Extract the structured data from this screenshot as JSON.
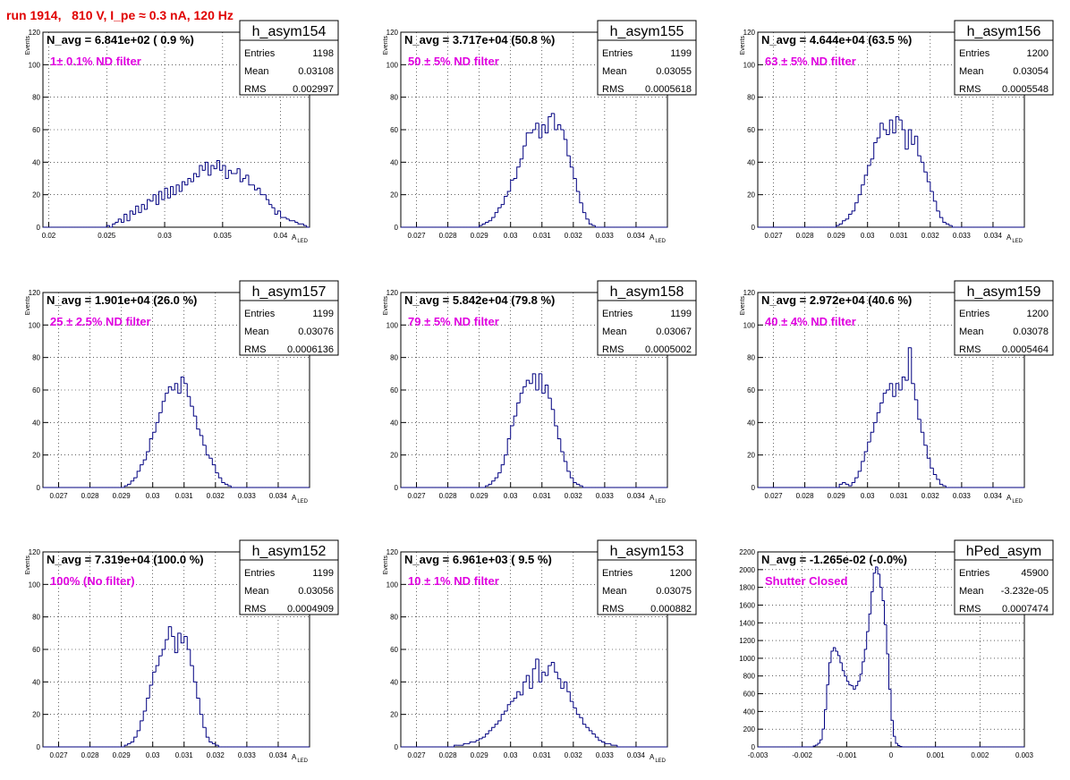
{
  "run_title": "run 1914,   810 V, I_pe ≈ 0.3 nA, 120 Hz",
  "colors": {
    "hist": "#000080",
    "label": "#e000e0",
    "title": "#e00000",
    "grid": "#000000"
  },
  "chart_data": [
    {
      "type": "histogram",
      "name": "h_asym154",
      "nav": "N_avg = 6.841e+02 ( 0.9 %)",
      "filter": "1± 0.1% ND filter",
      "stats": {
        "entries": "1198",
        "mean": "0.03108",
        "rms": "0.002997"
      },
      "ylabel": "Events",
      "xlabel": "A_LED",
      "xlim": [
        0.0195,
        0.0425
      ],
      "ylim": [
        0,
        120
      ],
      "xticks": [
        0.02,
        0.025,
        0.03,
        0.035,
        0.04
      ],
      "xtick_labels": [
        "0.02",
        "0.025",
        "0.03",
        "0.035",
        "0.04"
      ],
      "yticks": [
        0,
        20,
        40,
        60,
        80,
        100,
        120
      ],
      "ytick_labels": [
        "0",
        "20",
        "40",
        "60",
        "80",
        "100",
        "120"
      ],
      "bin_lo": 0.0195,
      "bin_w": 0.00025,
      "counts": [
        0,
        0,
        0,
        0,
        0,
        0,
        0,
        0,
        0,
        0,
        0,
        0,
        0,
        0,
        0,
        0,
        0,
        0,
        0,
        0,
        0,
        0,
        1,
        0,
        2,
        3,
        5,
        3,
        8,
        4,
        10,
        8,
        13,
        9,
        14,
        11,
        17,
        16,
        20,
        14,
        22,
        17,
        24,
        18,
        25,
        20,
        26,
        22,
        28,
        26,
        30,
        28,
        33,
        31,
        38,
        35,
        40,
        32,
        38,
        36,
        41,
        35,
        38,
        30,
        35,
        33,
        33,
        36,
        28,
        30,
        32,
        26,
        26,
        23,
        24,
        20,
        20,
        17,
        14,
        12,
        8,
        10,
        6,
        6,
        5,
        4,
        4,
        3,
        2,
        2,
        1,
        0,
        0,
        0
      ]
    },
    {
      "type": "histogram",
      "name": "h_asym155",
      "nav": "N_avg = 3.717e+04 (50.8 %)",
      "filter": "50 ± 5% ND filter",
      "stats": {
        "entries": "1199",
        "mean": "0.03055",
        "rms": "0.0005618"
      },
      "ylabel": "Events",
      "xlabel": "A_LED",
      "xlim": [
        0.0265,
        0.035
      ],
      "ylim": [
        0,
        120
      ],
      "xticks": [
        0.027,
        0.028,
        0.029,
        0.03,
        0.031,
        0.032,
        0.033,
        0.034
      ],
      "xtick_labels": [
        "0.027",
        "0.028",
        "0.029",
        "0.03",
        "0.031",
        "0.032",
        "0.033",
        "0.034"
      ],
      "yticks": [
        0,
        20,
        40,
        60,
        80,
        100,
        120
      ],
      "ytick_labels": [
        "0",
        "20",
        "40",
        "60",
        "80",
        "100",
        "120"
      ],
      "bin_lo": 0.0265,
      "bin_w": 0.0001,
      "counts": [
        0,
        0,
        0,
        0,
        0,
        0,
        0,
        0,
        0,
        0,
        0,
        0,
        0,
        0,
        0,
        0,
        0,
        0,
        0,
        0,
        0,
        0,
        0,
        0,
        0,
        1,
        2,
        3,
        4,
        6,
        9,
        12,
        14,
        19,
        22,
        29,
        30,
        37,
        42,
        50,
        58,
        58,
        60,
        64,
        55,
        63,
        58,
        68,
        70,
        60,
        63,
        60,
        54,
        44,
        37,
        30,
        22,
        15,
        9,
        5,
        2,
        1,
        0,
        0,
        0,
        0,
        0,
        0,
        0,
        0,
        0,
        0,
        0,
        0,
        0,
        0,
        0,
        0,
        0,
        0,
        0,
        0,
        0,
        0,
        0
      ]
    },
    {
      "type": "histogram",
      "name": "h_asym156",
      "nav": "N_avg = 4.644e+04 (63.5 %)",
      "filter": "63 ± 5% ND filter",
      "stats": {
        "entries": "1200",
        "mean": "0.03054",
        "rms": "0.0005548"
      },
      "ylabel": "Events",
      "xlabel": "A_LED",
      "xlim": [
        0.0265,
        0.035
      ],
      "ylim": [
        0,
        120
      ],
      "xticks": [
        0.027,
        0.028,
        0.029,
        0.03,
        0.031,
        0.032,
        0.033,
        0.034
      ],
      "xtick_labels": [
        "0.027",
        "0.028",
        "0.029",
        "0.03",
        "0.031",
        "0.032",
        "0.033",
        "0.034"
      ],
      "yticks": [
        0,
        20,
        40,
        60,
        80,
        100,
        120
      ],
      "ytick_labels": [
        "0",
        "20",
        "40",
        "60",
        "80",
        "100",
        "120"
      ],
      "bin_lo": 0.0265,
      "bin_w": 0.0001,
      "counts": [
        0,
        0,
        0,
        0,
        0,
        0,
        0,
        0,
        0,
        0,
        0,
        0,
        0,
        0,
        0,
        0,
        0,
        0,
        0,
        0,
        0,
        0,
        0,
        0,
        0,
        1,
        2,
        4,
        5,
        8,
        10,
        15,
        20,
        26,
        32,
        38,
        42,
        52,
        55,
        64,
        60,
        57,
        66,
        58,
        68,
        66,
        60,
        48,
        60,
        51,
        56,
        44,
        40,
        34,
        28,
        22,
        16,
        10,
        6,
        3,
        2,
        1,
        0,
        0,
        0,
        0,
        0,
        0,
        0,
        0,
        0,
        0,
        0,
        0,
        0,
        0,
        0,
        0,
        0,
        0,
        0,
        0,
        0,
        0,
        0
      ]
    },
    {
      "type": "histogram",
      "name": "h_asym157",
      "nav": "N_avg = 1.901e+04 (26.0 %)",
      "filter": "25 ± 2.5% ND filter",
      "stats": {
        "entries": "1199",
        "mean": "0.03076",
        "rms": "0.0006136"
      },
      "ylabel": "Events",
      "xlabel": "A_LED",
      "xlim": [
        0.0265,
        0.035
      ],
      "ylim": [
        0,
        120
      ],
      "xticks": [
        0.027,
        0.028,
        0.029,
        0.03,
        0.031,
        0.032,
        0.033,
        0.034
      ],
      "xtick_labels": [
        "0.027",
        "0.028",
        "0.029",
        "0.03",
        "0.031",
        "0.032",
        "0.033",
        "0.034"
      ],
      "yticks": [
        0,
        20,
        40,
        60,
        80,
        100,
        120
      ],
      "ytick_labels": [
        "0",
        "20",
        "40",
        "60",
        "80",
        "100",
        "120"
      ],
      "bin_lo": 0.0265,
      "bin_w": 0.0001,
      "counts": [
        0,
        0,
        0,
        0,
        0,
        0,
        0,
        0,
        0,
        0,
        0,
        0,
        0,
        0,
        0,
        0,
        0,
        0,
        0,
        0,
        0,
        0,
        0,
        0,
        0,
        0,
        1,
        2,
        4,
        6,
        10,
        14,
        17,
        22,
        30,
        34,
        40,
        46,
        53,
        58,
        62,
        60,
        64,
        58,
        68,
        64,
        56,
        50,
        44,
        36,
        32,
        26,
        20,
        18,
        14,
        9,
        6,
        3,
        2,
        1,
        0,
        0,
        0,
        0,
        0,
        0,
        0,
        0,
        0,
        0,
        0,
        0,
        0,
        0,
        0,
        0,
        0,
        0,
        0,
        0,
        0,
        0,
        0,
        0,
        0
      ]
    },
    {
      "type": "histogram",
      "name": "h_asym158",
      "nav": "N_avg = 5.842e+04 (79.8 %)",
      "filter": "79 ± 5% ND filter",
      "stats": {
        "entries": "1199",
        "mean": "0.03067",
        "rms": "0.0005002"
      },
      "ylabel": "Events",
      "xlabel": "A_LED",
      "xlim": [
        0.0265,
        0.035
      ],
      "ylim": [
        0,
        120
      ],
      "xticks": [
        0.027,
        0.028,
        0.029,
        0.03,
        0.031,
        0.032,
        0.033,
        0.034
      ],
      "xtick_labels": [
        "0.027",
        "0.028",
        "0.029",
        "0.03",
        "0.031",
        "0.032",
        "0.033",
        "0.034"
      ],
      "yticks": [
        0,
        20,
        40,
        60,
        80,
        100,
        120
      ],
      "ytick_labels": [
        "0",
        "20",
        "40",
        "60",
        "80",
        "100",
        "120"
      ],
      "bin_lo": 0.0265,
      "bin_w": 0.0001,
      "counts": [
        0,
        0,
        0,
        0,
        0,
        0,
        0,
        0,
        0,
        0,
        0,
        0,
        0,
        0,
        0,
        0,
        0,
        0,
        0,
        0,
        0,
        0,
        0,
        0,
        0,
        0,
        0,
        1,
        2,
        4,
        6,
        9,
        14,
        20,
        30,
        38,
        44,
        52,
        58,
        62,
        66,
        64,
        70,
        60,
        70,
        58,
        63,
        55,
        48,
        38,
        30,
        22,
        16,
        10,
        6,
        3,
        2,
        1,
        0,
        0,
        0,
        0,
        0,
        0,
        0,
        0,
        0,
        0,
        0,
        0,
        0,
        0,
        0,
        0,
        0,
        0,
        0,
        0,
        0,
        0,
        0,
        0,
        0,
        0,
        0
      ]
    },
    {
      "type": "histogram",
      "name": "h_asym159",
      "nav": "N_avg = 2.972e+04 (40.6 %)",
      "filter": "40 ± 4% ND filter",
      "stats": {
        "entries": "1200",
        "mean": "0.03078",
        "rms": "0.0005464"
      },
      "ylabel": "Events",
      "xlabel": "A_LED",
      "xlim": [
        0.0265,
        0.035
      ],
      "ylim": [
        0,
        120
      ],
      "xticks": [
        0.027,
        0.028,
        0.029,
        0.03,
        0.031,
        0.032,
        0.033,
        0.034
      ],
      "xtick_labels": [
        "0.027",
        "0.028",
        "0.029",
        "0.03",
        "0.031",
        "0.032",
        "0.033",
        "0.034"
      ],
      "yticks": [
        0,
        20,
        40,
        60,
        80,
        100,
        120
      ],
      "ytick_labels": [
        "0",
        "20",
        "40",
        "60",
        "80",
        "100",
        "120"
      ],
      "bin_lo": 0.0265,
      "bin_w": 0.0001,
      "counts": [
        0,
        0,
        0,
        0,
        0,
        0,
        0,
        0,
        0,
        0,
        0,
        0,
        0,
        0,
        0,
        0,
        0,
        0,
        0,
        0,
        0,
        0,
        0,
        0,
        0,
        0,
        2,
        3,
        2,
        1,
        3,
        6,
        10,
        16,
        22,
        28,
        34,
        40,
        46,
        52,
        58,
        60,
        64,
        56,
        64,
        60,
        68,
        66,
        86,
        64,
        54,
        42,
        34,
        26,
        18,
        12,
        8,
        5,
        2,
        1,
        0,
        0,
        0,
        0,
        0,
        0,
        0,
        0,
        0,
        0,
        0,
        0,
        0,
        0,
        0,
        0,
        0,
        0,
        0,
        0,
        0,
        0,
        0,
        0,
        0
      ]
    },
    {
      "type": "histogram",
      "name": "h_asym152",
      "nav": "N_avg = 7.319e+04 (100.0 %)",
      "filter": "100% (No filter)",
      "stats": {
        "entries": "1199",
        "mean": "0.03056",
        "rms": "0.0004909"
      },
      "ylabel": "Events",
      "xlabel": "A_LED",
      "xlim": [
        0.0265,
        0.035
      ],
      "ylim": [
        0,
        120
      ],
      "xticks": [
        0.027,
        0.028,
        0.029,
        0.03,
        0.031,
        0.032,
        0.033,
        0.034
      ],
      "xtick_labels": [
        "0.027",
        "0.028",
        "0.029",
        "0.03",
        "0.031",
        "0.032",
        "0.033",
        "0.034"
      ],
      "yticks": [
        0,
        20,
        40,
        60,
        80,
        100,
        120
      ],
      "ytick_labels": [
        "0",
        "20",
        "40",
        "60",
        "80",
        "100",
        "120"
      ],
      "bin_lo": 0.0265,
      "bin_w": 0.0001,
      "counts": [
        0,
        0,
        0,
        0,
        0,
        0,
        0,
        0,
        0,
        0,
        0,
        0,
        0,
        0,
        0,
        0,
        0,
        0,
        0,
        0,
        0,
        0,
        0,
        0,
        0,
        0,
        1,
        2,
        3,
        6,
        10,
        16,
        22,
        30,
        38,
        46,
        50,
        56,
        60,
        66,
        74,
        68,
        58,
        70,
        64,
        68,
        60,
        50,
        40,
        30,
        20,
        12,
        6,
        3,
        2,
        1,
        0,
        0,
        0,
        0,
        0,
        0,
        0,
        0,
        0,
        0,
        0,
        0,
        0,
        0,
        0,
        0,
        0,
        0,
        0,
        0,
        0,
        0,
        0,
        0,
        0,
        0,
        0,
        0,
        0
      ]
    },
    {
      "type": "histogram",
      "name": "h_asym153",
      "nav": "N_avg = 6.961e+03 ( 9.5 %)",
      "filter": "10 ± 1% ND filter",
      "stats": {
        "entries": "1200",
        "mean": "0.03075",
        "rms": "0.000882"
      },
      "ylabel": "Events",
      "xlabel": "A_LED",
      "xlim": [
        0.0265,
        0.035
      ],
      "ylim": [
        0,
        120
      ],
      "xticks": [
        0.027,
        0.028,
        0.029,
        0.03,
        0.031,
        0.032,
        0.033,
        0.034
      ],
      "xtick_labels": [
        "0.027",
        "0.028",
        "0.029",
        "0.03",
        "0.031",
        "0.032",
        "0.033",
        "0.034"
      ],
      "yticks": [
        0,
        20,
        40,
        60,
        80,
        100,
        120
      ],
      "ytick_labels": [
        "0",
        "20",
        "40",
        "60",
        "80",
        "100",
        "120"
      ],
      "bin_lo": 0.0265,
      "bin_w": 0.0001,
      "counts": [
        0,
        0,
        0,
        0,
        0,
        0,
        0,
        0,
        0,
        0,
        0,
        0,
        0,
        0,
        0,
        0,
        0,
        1,
        1,
        1,
        2,
        2,
        3,
        3,
        4,
        5,
        6,
        8,
        10,
        12,
        14,
        16,
        20,
        22,
        26,
        28,
        30,
        34,
        32,
        40,
        44,
        36,
        48,
        54,
        40,
        46,
        44,
        50,
        52,
        46,
        42,
        36,
        40,
        34,
        28,
        24,
        20,
        18,
        14,
        12,
        10,
        8,
        6,
        4,
        3,
        2,
        2,
        1,
        1,
        0,
        0,
        0,
        0,
        0,
        0,
        0,
        0,
        0,
        0,
        0,
        0,
        0,
        0,
        0,
        0
      ]
    },
    {
      "type": "histogram",
      "name": "hPed_asym",
      "nav": "N_avg = -1.265e-02 (-0.0%)",
      "filter": "Shutter Closed",
      "stats": {
        "entries": "45900",
        "mean": "-3.232e-05",
        "rms": "0.0007474"
      },
      "ylabel": "",
      "xlabel": "",
      "xlim": [
        -0.003,
        0.003
      ],
      "ylim": [
        0,
        2200
      ],
      "xticks": [
        -0.003,
        -0.002,
        -0.001,
        0,
        0.001,
        0.002,
        0.003
      ],
      "xtick_labels": [
        "-0.003",
        "-0.002",
        "-0.001",
        "0",
        "0.001",
        "0.002",
        "0.003"
      ],
      "yticks": [
        0,
        200,
        400,
        600,
        800,
        1000,
        1200,
        1400,
        1600,
        1800,
        2000,
        2200
      ],
      "ytick_labels": [
        "0",
        "200",
        "400",
        "600",
        "800",
        "1000",
        "1200",
        "1400",
        "1600",
        "1800",
        "2000",
        "2200"
      ],
      "bin_lo": -0.003,
      "bin_w": 5e-05,
      "counts": [
        0,
        0,
        0,
        0,
        0,
        0,
        0,
        0,
        0,
        0,
        0,
        0,
        0,
        0,
        0,
        0,
        0,
        0,
        0,
        0,
        0,
        0,
        0,
        0,
        0,
        10,
        20,
        40,
        80,
        200,
        420,
        700,
        950,
        1080,
        1120,
        1080,
        1030,
        950,
        860,
        800,
        740,
        700,
        690,
        650,
        690,
        740,
        820,
        960,
        1100,
        1300,
        1500,
        1750,
        1960,
        2030,
        1950,
        1800,
        1650,
        1380,
        1050,
        650,
        300,
        120,
        40,
        15,
        5,
        0,
        0,
        0,
        0,
        0,
        0,
        0,
        0,
        0,
        0,
        0,
        0,
        0,
        0,
        0,
        0,
        0,
        0,
        0,
        0,
        0,
        0,
        0,
        0,
        0,
        0,
        0,
        0,
        0,
        0,
        0,
        0,
        0,
        0,
        0,
        0,
        0,
        0,
        0,
        0,
        0,
        0,
        0,
        0,
        0,
        0,
        0,
        0,
        0,
        0,
        0,
        0,
        0,
        0,
        0,
        0,
        0,
        0,
        0
      ]
    }
  ]
}
